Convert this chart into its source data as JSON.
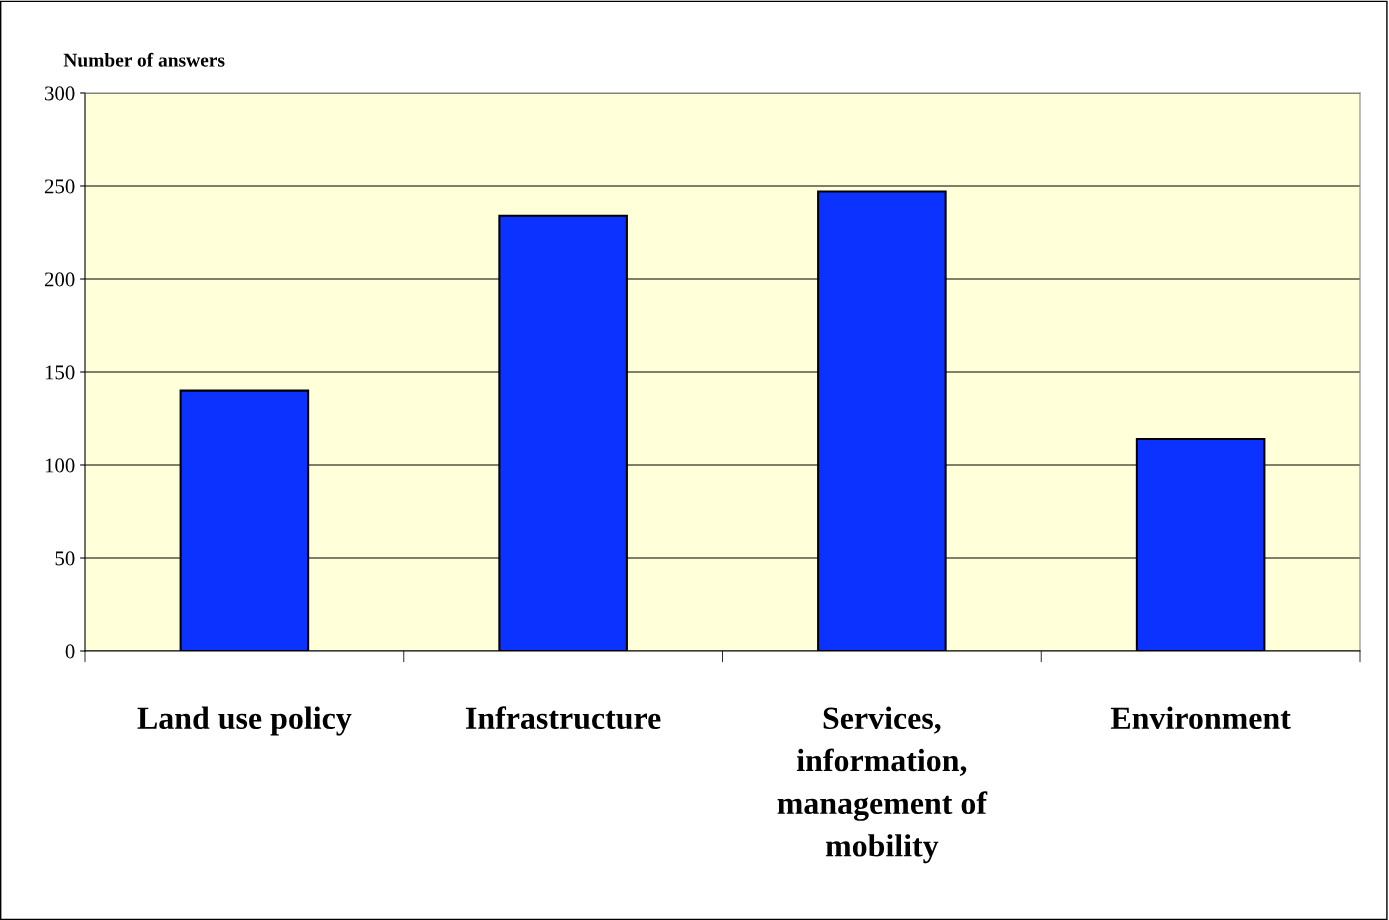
{
  "chart_data": {
    "type": "bar",
    "ylabel": "Number of answers",
    "categories": [
      "Land use policy",
      "Infrastructure",
      "Services,\ninformation,\nmanagement of\nmobility",
      "Environment"
    ],
    "values": [
      140,
      234,
      247,
      114
    ],
    "color": "#0c32ff",
    "ylim": [
      0,
      300
    ],
    "yticks": [
      0,
      50,
      100,
      150,
      200,
      250,
      300
    ],
    "grid": "y",
    "legend": false
  }
}
